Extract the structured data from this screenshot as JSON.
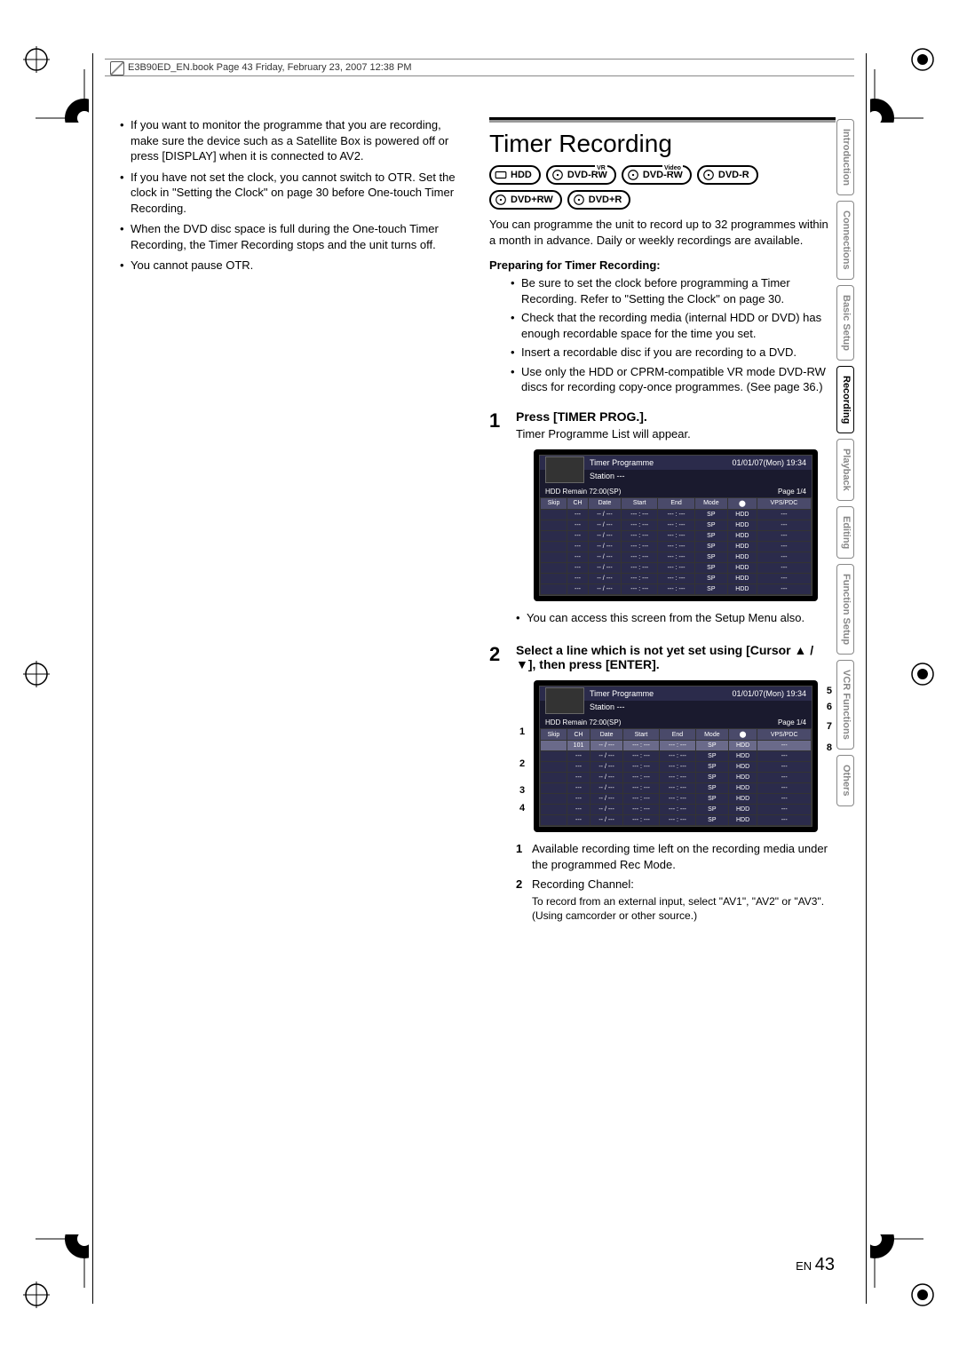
{
  "header": {
    "line": "E3B90ED_EN.book  Page 43  Friday, February 23, 2007  12:38 PM"
  },
  "leftCol": {
    "bullets": [
      "If you want to monitor the programme that you are recording, make sure the device such as a Satellite Box is powered off or press [DISPLAY] when it is connected to AV2.",
      "If you have not set the clock, you cannot switch to OTR. Set the clock in \"Setting the Clock\" on page 30 before One-touch Timer Recording.",
      "When the DVD disc space is full during the One-touch Timer Recording, the Timer Recording stops and the unit turns off.",
      "You cannot pause OTR."
    ]
  },
  "rightCol": {
    "title": "Timer Recording",
    "discs_row1": [
      {
        "label": "HDD",
        "top": ""
      },
      {
        "label": "DVD-RW",
        "top": "VR"
      },
      {
        "label": "DVD-RW",
        "top": "Video"
      },
      {
        "label": "DVD-R",
        "top": ""
      }
    ],
    "discs_row2": [
      {
        "label": "DVD+RW",
        "top": ""
      },
      {
        "label": "DVD+R",
        "top": ""
      }
    ],
    "intro": "You can programme the unit to record up to 32 programmes within a month in advance. Daily or weekly recordings are available.",
    "prepTitle": "Preparing for Timer Recording:",
    "prepBullets": [
      "Be sure to set the clock before programming a Timer Recording. Refer to \"Setting the Clock\" on page 30.",
      "Check that the recording media (internal HDD or DVD) has enough recordable space for the time you set.",
      "Insert a recordable disc if you are recording to a DVD.",
      "Use only the HDD or CPRM-compatible VR mode DVD-RW discs for recording copy-once programmes. (See page 36.)"
    ],
    "step1": {
      "heading": "Press [TIMER PROG.].",
      "text": "Timer Programme List will appear.",
      "note": "You can access this screen from the Setup Menu also."
    },
    "step2": {
      "heading": "Select a line which is not yet set using [Cursor ▲ / ▼], then press [ENTER]."
    },
    "screen": {
      "title": "Timer Programme",
      "datetime": "01/01/07(Mon) 19:34",
      "station": "Station   ---",
      "hdd_remain": "HDD Remain   72:00(SP)",
      "page": "Page 1/4",
      "columns": [
        "Skip",
        "CH",
        "Date",
        "Start",
        "End",
        "Mode",
        "⬤",
        "VPS/PDC"
      ],
      "row": [
        "---",
        "-- / ---",
        "--- : ---",
        "--- : ---",
        "SP",
        "HDD",
        "---"
      ],
      "sel_row": [
        "101",
        "-- / ---",
        "--- : ---",
        "--- : ---",
        "SP",
        "HDD",
        "---"
      ]
    },
    "legend": [
      {
        "num": "1",
        "text": "Available recording time left on the recording media under the programmed Rec Mode."
      },
      {
        "num": "2",
        "text": "Recording Channel:",
        "sub": "To record from an external input, select \"AV1\", \"AV2\" or \"AV3\". (Using camcorder or other source.)"
      }
    ],
    "callouts_left": [
      "1",
      "2",
      "3",
      "4"
    ],
    "callouts_right": [
      "5",
      "6",
      "7",
      "8"
    ]
  },
  "tabs": [
    "Introduction",
    "Connections",
    "Basic Setup",
    "Recording",
    "Playback",
    "Editing",
    "Function Setup",
    "VCR Functions",
    "Others"
  ],
  "activeTab": "Recording",
  "pageNum": {
    "prefix": "EN",
    "num": "43"
  }
}
